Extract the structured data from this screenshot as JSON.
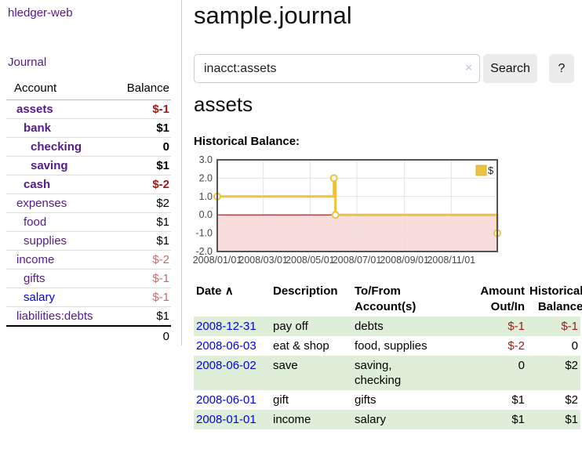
{
  "colors": {
    "accent_purple": "#551a8b",
    "link_blue": "#0000e8",
    "negative_strong": "#9e1a1a",
    "negative_soft": "#c06d6d",
    "stripe_green": "#deeed8",
    "chart_line": "#edc240",
    "chart_negative_fill": "#f9dcdc",
    "chart_zero_line": "#8b0000",
    "chart_border": "#545454",
    "chart_grid": "#e3e3e3"
  },
  "sidebar": {
    "brand": "hledger-web",
    "nav_journal": "Journal",
    "accounts": {
      "header_account": "Account",
      "header_balance": "Balance",
      "rows": [
        {
          "name": "assets",
          "balance": "$-1",
          "depth": 1,
          "bold": true,
          "neg": "strong"
        },
        {
          "name": "bank",
          "balance": "$1",
          "depth": 2,
          "bold": true
        },
        {
          "name": "checking",
          "balance": "0",
          "depth": 3,
          "bold": true
        },
        {
          "name": "saving",
          "balance": "$1",
          "depth": 3,
          "bold": true
        },
        {
          "name": "cash",
          "balance": "$-2",
          "depth": 2,
          "bold": true,
          "neg": "strong"
        },
        {
          "name": "expenses",
          "balance": "$2",
          "depth": 1
        },
        {
          "name": "food",
          "balance": "$1",
          "depth": 2
        },
        {
          "name": "supplies",
          "balance": "$1",
          "depth": 2
        },
        {
          "name": "income",
          "balance": "$-2",
          "depth": 1,
          "neg": "soft"
        },
        {
          "name": "gifts",
          "balance": "$-1",
          "depth": 2,
          "neg": "soft"
        },
        {
          "name": "salary",
          "balance": "$-1",
          "depth": 2,
          "neg": "soft",
          "link": "blue"
        },
        {
          "name": "liabilities:debts",
          "balance": "$1",
          "depth": 1
        }
      ],
      "total": "0"
    }
  },
  "main": {
    "title": "sample.journal",
    "search": {
      "value": "inacct:assets",
      "clear_icon": "×",
      "button": "Search",
      "help_button": "?"
    },
    "account_heading": "assets",
    "chart_heading": "Historical Balance:"
  },
  "chart_data": {
    "type": "line",
    "step": true,
    "title": "Historical Balance:",
    "series": [
      {
        "name": "$",
        "color": "#edc240",
        "points": [
          {
            "date": "2008-01-01",
            "day": 0,
            "value": 1
          },
          {
            "date": "2008-06-01",
            "day": 152,
            "value": 2
          },
          {
            "date": "2008-06-03",
            "day": 154,
            "value": 0
          },
          {
            "date": "2008-12-31",
            "day": 365,
            "value": -1
          }
        ]
      }
    ],
    "x_ticks": [
      {
        "label": "2008/01/01",
        "day": 0
      },
      {
        "label": "2008/03/01",
        "day": 60
      },
      {
        "label": "2008/05/01",
        "day": 121
      },
      {
        "label": "2008/07/01",
        "day": 182
      },
      {
        "label": "2008/09/01",
        "day": 244
      },
      {
        "label": "2008/11/01",
        "day": 305
      }
    ],
    "y_ticks": [
      3.0,
      2.0,
      1.0,
      0.0,
      -1.0,
      -2.0
    ],
    "ylim": [
      -2,
      3
    ],
    "x_range_days": [
      0,
      365
    ],
    "legend": {
      "label": "$",
      "position": "top-right"
    },
    "grid": true,
    "negative_region": true
  },
  "register": {
    "columns": [
      "Date",
      "Description",
      "To/From Account(s)",
      "Amount Out/In",
      "Historical Balance"
    ],
    "sort_icon": "∧",
    "rows": [
      {
        "date": "2008-12-31",
        "description": "pay off",
        "accounts": "debts",
        "amount": "$-1",
        "amount_neg": true,
        "balance": "$-1",
        "balance_neg": true
      },
      {
        "date": "2008-06-03",
        "description": "eat & shop",
        "accounts": "food, supplies",
        "amount": "$-2",
        "amount_neg": true,
        "balance": "0",
        "balance_neg": false
      },
      {
        "date": "2008-06-02",
        "description": "save",
        "accounts": "saving, checking",
        "amount": "0",
        "amount_neg": false,
        "balance": "$2",
        "balance_neg": false
      },
      {
        "date": "2008-06-01",
        "description": "gift",
        "accounts": "gifts",
        "amount": "$1",
        "amount_neg": false,
        "balance": "$2",
        "balance_neg": false
      },
      {
        "date": "2008-01-01",
        "description": "income",
        "accounts": "salary",
        "amount": "$1",
        "amount_neg": false,
        "balance": "$1",
        "balance_neg": false
      }
    ]
  }
}
